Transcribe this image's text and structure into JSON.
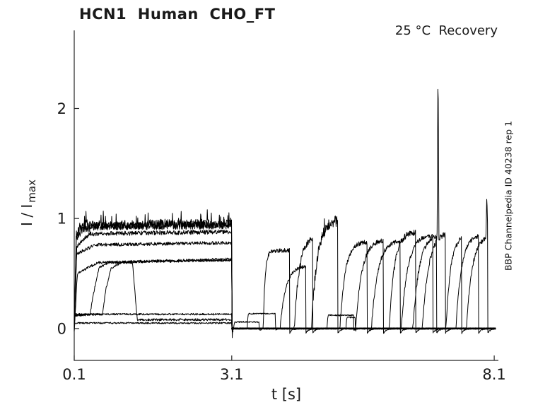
{
  "figure": {
    "title": "HCN1  Human  CHO_FT",
    "annotation": "25 °C  Recovery",
    "watermark": "BBP Channelpedia ID 40238 rep 1",
    "xlabel": "t [s]",
    "ylabel_main": "I / I",
    "ylabel_sub": "max"
  },
  "chart_data": {
    "type": "line",
    "title": "HCN1  Human  CHO_FT",
    "annotation": "25 °C  Recovery",
    "watermark": "BBP Channelpedia ID 40238 rep 1",
    "xlabel": "t [s]",
    "ylabel": "I / I_max",
    "xlim": [
      0.1,
      8.18
    ],
    "ylim": [
      -0.29,
      2.71
    ],
    "xticks": [
      0.1,
      3.1,
      8.1
    ],
    "xtick_labels": [
      "0.1",
      "3.1",
      "8.1"
    ],
    "yticks": [
      0,
      1,
      2
    ],
    "ytick_labels": [
      "0",
      "1",
      "2"
    ],
    "grid": false,
    "legend": null,
    "line_color": "#000000",
    "axis_color": "#262626",
    "noise_seed": 20424,
    "sample_dt": 0.007,
    "conditioning_traces": [
      {
        "anchors": [
          [
            0.1,
            -0.02
          ],
          [
            0.135,
            0.82
          ],
          [
            0.25,
            0.9
          ],
          [
            0.6,
            0.93
          ],
          [
            3.1,
            0.94
          ],
          [
            3.107,
            -0.05
          ],
          [
            3.13,
            -0.02
          ]
        ],
        "noise": 0.035,
        "spiky": true
      },
      {
        "anchors": [
          [
            0.1,
            0
          ],
          [
            0.14,
            0.85
          ],
          [
            0.3,
            0.94
          ],
          [
            3.1,
            0.95
          ],
          [
            3.107,
            -0.05
          ],
          [
            3.13,
            -0.02
          ]
        ],
        "noise": 0.045,
        "spiky": true
      },
      {
        "anchors": [
          [
            0.1,
            0
          ],
          [
            0.15,
            0.75
          ],
          [
            0.4,
            0.86
          ],
          [
            3.1,
            0.88
          ],
          [
            3.107,
            -0.04
          ],
          [
            3.13,
            -0.02
          ]
        ],
        "noise": 0.02,
        "spiky": false
      },
      {
        "anchors": [
          [
            0.1,
            0
          ],
          [
            0.145,
            0.68
          ],
          [
            0.5,
            0.76
          ],
          [
            3.1,
            0.78
          ],
          [
            3.107,
            -0.04
          ],
          [
            3.13,
            -0.02
          ]
        ],
        "noise": 0.015,
        "spiky": false
      },
      {
        "anchors": [
          [
            0.1,
            -0.02
          ],
          [
            0.16,
            0.5
          ],
          [
            0.55,
            0.6
          ],
          [
            3.1,
            0.63
          ],
          [
            3.107,
            -0.03
          ],
          [
            3.13,
            -0.02
          ]
        ],
        "noise": 0.012,
        "spiky": false
      },
      {
        "anchors": [
          [
            0.1,
            0
          ],
          [
            0.115,
            0.12
          ],
          [
            0.4,
            0.125
          ],
          [
            0.46,
            0.3
          ],
          [
            0.57,
            0.55
          ],
          [
            0.75,
            0.6
          ],
          [
            3.1,
            0.62
          ],
          [
            3.107,
            -0.03
          ],
          [
            3.13,
            -0.02
          ]
        ],
        "noise": 0.01,
        "spiky": false
      },
      {
        "anchors": [
          [
            0.1,
            0
          ],
          [
            0.115,
            0.12
          ],
          [
            0.64,
            0.13
          ],
          [
            0.7,
            0.35
          ],
          [
            0.8,
            0.55
          ],
          [
            1.0,
            0.6
          ],
          [
            1.21,
            0.6
          ],
          [
            1.3,
            0.08
          ],
          [
            3.1,
            0.08
          ],
          [
            3.105,
            -0.02
          ],
          [
            3.13,
            -0.01
          ]
        ],
        "noise": 0.01,
        "spiky": false
      },
      {
        "anchors": [
          [
            0.1,
            0
          ],
          [
            0.112,
            0.13
          ],
          [
            3.1,
            0.13
          ],
          [
            3.105,
            -0.02
          ],
          [
            3.13,
            -0.01
          ]
        ],
        "noise": 0.008,
        "spiky": false
      },
      {
        "anchors": [
          [
            0.1,
            -0.02
          ],
          [
            0.112,
            0.05
          ],
          [
            3.1,
            0.05
          ],
          [
            3.105,
            -0.02
          ],
          [
            3.13,
            -0.01
          ]
        ],
        "noise": 0.007,
        "spiky": false
      }
    ],
    "recovery_pulses": [
      {
        "on": 3.7,
        "off": 4.2,
        "plateau": 0.71,
        "tau": 0.035,
        "noise": 0.02
      },
      {
        "on": 4.02,
        "off": 4.51,
        "plateau": 0.57,
        "tau": 0.11,
        "noise": 0.015
      },
      {
        "on": 4.29,
        "off": 4.64,
        "plateau": 0.85,
        "tau": 0.1,
        "noise": 0.03
      },
      {
        "on": 4.62,
        "off": 5.12,
        "plateau": 0.99,
        "tau": 0.11,
        "noise": 0.05,
        "spiky": true
      },
      {
        "on": 5.16,
        "off": 5.68,
        "plateau": 0.79,
        "tau": 0.1,
        "noise": 0.02
      },
      {
        "on": 5.46,
        "off": 5.99,
        "plateau": 0.81,
        "tau": 0.12,
        "noise": 0.02
      },
      {
        "on": 5.76,
        "off": 6.31,
        "plateau": 0.8,
        "tau": 0.12,
        "noise": 0.02
      },
      {
        "on": 6.1,
        "off": 6.6,
        "plateau": 0.88,
        "tau": 0.1,
        "noise": 0.03
      },
      {
        "on": 6.33,
        "off": 6.93,
        "plateau": 0.85,
        "tau": 0.12,
        "noise": 0.02
      },
      {
        "on": 6.55,
        "off": 7.0,
        "plateau": 0.86,
        "tau": 0.12,
        "noise": 0.02
      },
      {
        "on": 6.73,
        "off": 7.17,
        "plateau": 0.88,
        "tau": 0.12,
        "noise": 0.025,
        "spike": [
          7.03,
          2.45
        ]
      },
      {
        "on": 7.18,
        "off": 7.48,
        "plateau": 0.85,
        "tau": 0.09,
        "noise": 0.02
      },
      {
        "on": 7.37,
        "off": 7.8,
        "plateau": 0.86,
        "tau": 0.11,
        "noise": 0.02
      },
      {
        "on": 7.57,
        "off": 7.975,
        "plateau": 0.85,
        "tau": 0.11,
        "noise": 0.02,
        "spike": [
          7.96,
          1.22
        ]
      }
    ],
    "baseline_steps": [
      {
        "on": 3.14,
        "off": 3.62,
        "level": 0.06
      },
      {
        "on": 3.4,
        "off": 3.93,
        "level": 0.135
      },
      {
        "on": 4.92,
        "off": 5.42,
        "level": 0.12
      },
      {
        "on": 5.28,
        "off": 5.45,
        "level": 0.1
      }
    ]
  }
}
